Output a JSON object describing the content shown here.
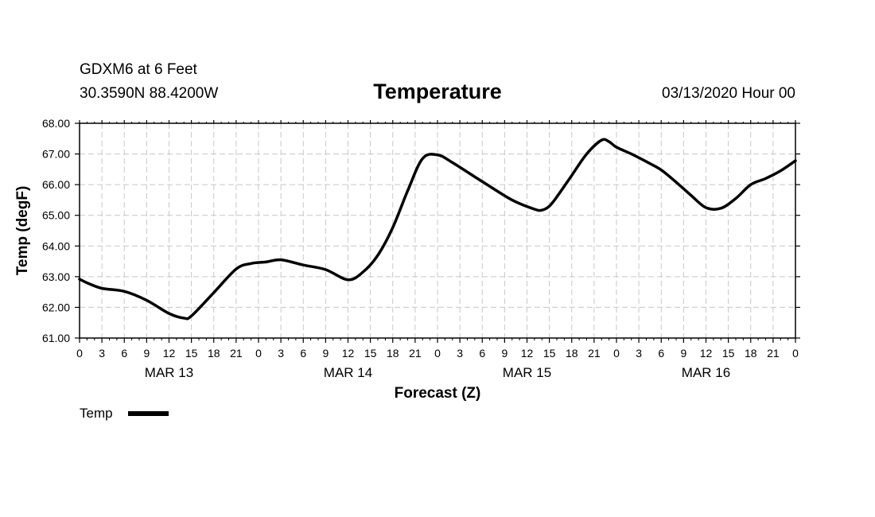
{
  "header": {
    "station": "GDXM6 at 6 Feet",
    "coords": "30.3590N 88.4200W",
    "datetime": "03/13/2020 Hour 00"
  },
  "chart_data": {
    "type": "line",
    "title": "Temperature",
    "xlabel": "Forecast (Z)",
    "ylabel": "Temp (degF)",
    "ylim": [
      61.0,
      68.0
    ],
    "y_ticks": [
      "61.00",
      "62.00",
      "63.00",
      "64.00",
      "65.00",
      "66.00",
      "67.00",
      "68.00"
    ],
    "x_unit": "forecast hour",
    "x_range": [
      0,
      96
    ],
    "x_ticks": [
      {
        "hour": 0,
        "label": "0"
      },
      {
        "hour": 3,
        "label": "3"
      },
      {
        "hour": 6,
        "label": "6"
      },
      {
        "hour": 9,
        "label": "9"
      },
      {
        "hour": 12,
        "label": "12"
      },
      {
        "hour": 15,
        "label": "15"
      },
      {
        "hour": 18,
        "label": "18"
      },
      {
        "hour": 21,
        "label": "21"
      },
      {
        "hour": 24,
        "label": "0"
      },
      {
        "hour": 27,
        "label": "3"
      },
      {
        "hour": 30,
        "label": "6"
      },
      {
        "hour": 33,
        "label": "9"
      },
      {
        "hour": 36,
        "label": "12"
      },
      {
        "hour": 39,
        "label": "15"
      },
      {
        "hour": 42,
        "label": "18"
      },
      {
        "hour": 45,
        "label": "21"
      },
      {
        "hour": 48,
        "label": "0"
      },
      {
        "hour": 51,
        "label": "3"
      },
      {
        "hour": 54,
        "label": "6"
      },
      {
        "hour": 57,
        "label": "9"
      },
      {
        "hour": 60,
        "label": "12"
      },
      {
        "hour": 63,
        "label": "15"
      },
      {
        "hour": 66,
        "label": "18"
      },
      {
        "hour": 69,
        "label": "21"
      },
      {
        "hour": 72,
        "label": "0"
      },
      {
        "hour": 75,
        "label": "3"
      },
      {
        "hour": 78,
        "label": "6"
      },
      {
        "hour": 81,
        "label": "9"
      },
      {
        "hour": 84,
        "label": "12"
      },
      {
        "hour": 87,
        "label": "15"
      },
      {
        "hour": 90,
        "label": "18"
      },
      {
        "hour": 93,
        "label": "21"
      },
      {
        "hour": 96,
        "label": "0"
      }
    ],
    "date_labels": [
      {
        "hour": 12,
        "label": "MAR 13"
      },
      {
        "hour": 36,
        "label": "MAR 14"
      },
      {
        "hour": 60,
        "label": "MAR 15"
      },
      {
        "hour": 84,
        "label": "MAR 16"
      }
    ],
    "grid": true,
    "legend": {
      "position": "bottom-left",
      "entries": [
        "Temp"
      ]
    },
    "series": [
      {
        "name": "Temp",
        "x": [
          0,
          1,
          3,
          6,
          9,
          12,
          14,
          15,
          18,
          21,
          23,
          25,
          27,
          30,
          33,
          36,
          38,
          40,
          42,
          44,
          46,
          48,
          50,
          54,
          58,
          61,
          62,
          63,
          64,
          66,
          68,
          70,
          71,
          72,
          74,
          76,
          78,
          80,
          82,
          84,
          86,
          88,
          90,
          92,
          94,
          96
        ],
        "values": [
          62.92,
          62.8,
          62.62,
          62.52,
          62.23,
          61.8,
          61.65,
          61.72,
          62.48,
          63.25,
          63.43,
          63.48,
          63.55,
          63.38,
          63.23,
          62.9,
          63.15,
          63.7,
          64.6,
          65.8,
          66.85,
          66.97,
          66.72,
          66.1,
          65.5,
          65.2,
          65.17,
          65.3,
          65.6,
          66.3,
          67.0,
          67.45,
          67.4,
          67.22,
          67.0,
          66.75,
          66.48,
          66.08,
          65.65,
          65.25,
          65.23,
          65.55,
          66.0,
          66.2,
          66.45,
          66.78
        ]
      }
    ]
  }
}
